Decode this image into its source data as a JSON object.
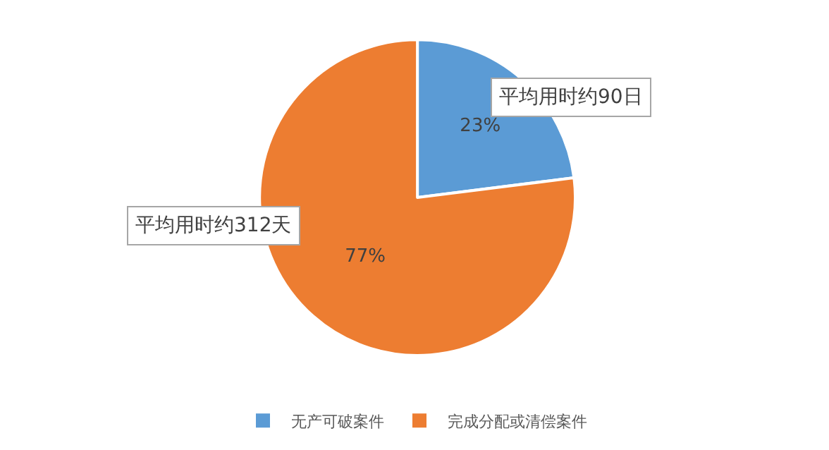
{
  "chart_data": {
    "type": "pie",
    "categories": [
      "无产可破案件",
      "完成分配或清偿案件"
    ],
    "values": [
      23,
      77
    ],
    "colors": [
      "#5b9bd5",
      "#ed7d31"
    ],
    "value_labels": [
      "23%",
      "77%"
    ],
    "annotations": [
      "平均用时约90日",
      "平均用时约312天"
    ],
    "legend": "bottom"
  }
}
